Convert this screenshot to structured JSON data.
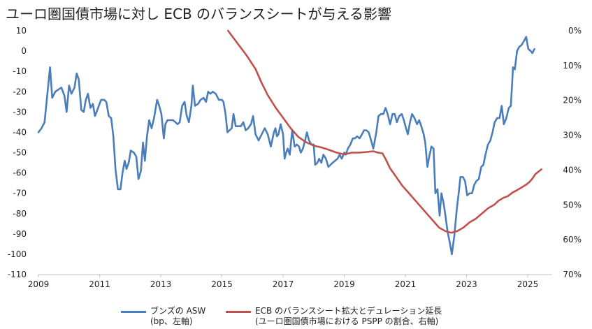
{
  "title": "ユーロ圏国債市場に対し ECB のバランスシートが与える影響",
  "chart_data": {
    "type": "line",
    "title": "ユーロ圏国債市場に対し ECB のバランスシートが与える影響",
    "x_ticks": [
      "2009",
      "2011",
      "2013",
      "2015",
      "2017",
      "2019",
      "2021",
      "2023",
      "2025"
    ],
    "x_range": [
      2009.0,
      2025.8
    ],
    "y_left_ticks": [
      "10",
      "0",
      "-10",
      "-20",
      "-30",
      "-40",
      "-50",
      "-60",
      "-70",
      "-80",
      "-90",
      "-100",
      "-110"
    ],
    "y_left_range": [
      -110,
      10
    ],
    "y_right_ticks": [
      "0%",
      "10%",
      "20%",
      "30%",
      "40%",
      "50%",
      "60%",
      "70%"
    ],
    "y_right_range": [
      0,
      70
    ],
    "y_right_inverted": true,
    "grid": false,
    "legend_position": "bottom",
    "series": [
      {
        "name": "ブンズの ASW",
        "name_line2": "(bp、左軸)",
        "axis": "left",
        "color": "#4a7ebb",
        "points": [
          [
            2009.0,
            -40
          ],
          [
            2009.1,
            -38
          ],
          [
            2009.2,
            -35
          ],
          [
            2009.3,
            -20
          ],
          [
            2009.38,
            -8
          ],
          [
            2009.45,
            -23
          ],
          [
            2009.55,
            -20
          ],
          [
            2009.65,
            -19
          ],
          [
            2009.75,
            -18
          ],
          [
            2009.85,
            -22
          ],
          [
            2009.92,
            -30
          ],
          [
            2010.0,
            -17
          ],
          [
            2010.08,
            -21
          ],
          [
            2010.18,
            -18
          ],
          [
            2010.25,
            -11
          ],
          [
            2010.32,
            -14
          ],
          [
            2010.4,
            -29
          ],
          [
            2010.48,
            -30
          ],
          [
            2010.55,
            -24
          ],
          [
            2010.62,
            -21
          ],
          [
            2010.7,
            -28
          ],
          [
            2010.78,
            -26
          ],
          [
            2010.85,
            -32
          ],
          [
            2010.95,
            -28
          ],
          [
            2011.05,
            -24
          ],
          [
            2011.15,
            -24
          ],
          [
            2011.22,
            -25
          ],
          [
            2011.3,
            -32
          ],
          [
            2011.38,
            -33
          ],
          [
            2011.45,
            -42
          ],
          [
            2011.52,
            -58
          ],
          [
            2011.6,
            -68
          ],
          [
            2011.68,
            -68
          ],
          [
            2011.75,
            -60
          ],
          [
            2011.82,
            -54
          ],
          [
            2011.88,
            -58
          ],
          [
            2011.95,
            -55
          ],
          [
            2012.02,
            -49
          ],
          [
            2012.12,
            -50
          ],
          [
            2012.2,
            -52
          ],
          [
            2012.27,
            -63
          ],
          [
            2012.35,
            -59
          ],
          [
            2012.42,
            -45
          ],
          [
            2012.48,
            -54
          ],
          [
            2012.55,
            -42
          ],
          [
            2012.62,
            -34
          ],
          [
            2012.7,
            -38
          ],
          [
            2012.78,
            -33
          ],
          [
            2012.88,
            -24
          ],
          [
            2012.95,
            -27
          ],
          [
            2013.02,
            -31
          ],
          [
            2013.1,
            -43
          ],
          [
            2013.15,
            -36
          ],
          [
            2013.22,
            -34
          ],
          [
            2013.3,
            -34
          ],
          [
            2013.4,
            -34
          ],
          [
            2013.48,
            -35
          ],
          [
            2013.55,
            -36
          ],
          [
            2013.62,
            -35
          ],
          [
            2013.7,
            -27
          ],
          [
            2013.78,
            -25
          ],
          [
            2013.85,
            -32
          ],
          [
            2013.92,
            -35
          ],
          [
            2014.0,
            -27
          ],
          [
            2014.05,
            -17
          ],
          [
            2014.12,
            -27
          ],
          [
            2014.22,
            -26
          ],
          [
            2014.3,
            -24
          ],
          [
            2014.4,
            -23
          ],
          [
            2014.48,
            -25
          ],
          [
            2014.55,
            -20
          ],
          [
            2014.62,
            -21
          ],
          [
            2014.7,
            -20
          ],
          [
            2014.8,
            -21
          ],
          [
            2014.9,
            -24
          ],
          [
            2015.0,
            -24
          ],
          [
            2015.05,
            -25
          ],
          [
            2015.12,
            -31
          ],
          [
            2015.18,
            -40
          ],
          [
            2015.25,
            -39
          ],
          [
            2015.32,
            -38
          ],
          [
            2015.38,
            -31
          ],
          [
            2015.45,
            -37
          ],
          [
            2015.55,
            -37
          ],
          [
            2015.62,
            -37
          ],
          [
            2015.7,
            -35
          ],
          [
            2015.78,
            -39
          ],
          [
            2015.86,
            -38
          ],
          [
            2015.95,
            -36
          ],
          [
            2016.02,
            -32
          ],
          [
            2016.1,
            -41
          ],
          [
            2016.2,
            -44
          ],
          [
            2016.3,
            -41
          ],
          [
            2016.4,
            -38
          ],
          [
            2016.5,
            -41
          ],
          [
            2016.6,
            -47
          ],
          [
            2016.7,
            -40
          ],
          [
            2016.75,
            -38
          ],
          [
            2016.8,
            -42
          ],
          [
            2016.85,
            -41
          ],
          [
            2016.92,
            -36
          ],
          [
            2017.0,
            -41
          ],
          [
            2017.05,
            -53
          ],
          [
            2017.1,
            -50
          ],
          [
            2017.15,
            -48
          ],
          [
            2017.22,
            -51
          ],
          [
            2017.3,
            -39
          ],
          [
            2017.38,
            -47
          ],
          [
            2017.45,
            -46
          ],
          [
            2017.52,
            -47
          ],
          [
            2017.58,
            -50
          ],
          [
            2017.65,
            -48
          ],
          [
            2017.72,
            -44
          ],
          [
            2017.78,
            -40
          ],
          [
            2017.85,
            -44
          ],
          [
            2017.92,
            -46
          ],
          [
            2018.0,
            -46
          ],
          [
            2018.05,
            -56
          ],
          [
            2018.12,
            -55
          ],
          [
            2018.18,
            -53
          ],
          [
            2018.25,
            -55
          ],
          [
            2018.32,
            -51
          ],
          [
            2018.4,
            -53
          ],
          [
            2018.48,
            -57
          ],
          [
            2018.55,
            -56
          ],
          [
            2018.62,
            -55
          ],
          [
            2018.7,
            -54
          ],
          [
            2018.78,
            -53
          ],
          [
            2018.85,
            -51
          ],
          [
            2018.92,
            -53
          ],
          [
            2019.0,
            -50
          ],
          [
            2019.05,
            -51
          ],
          [
            2019.12,
            -48
          ],
          [
            2019.2,
            -46
          ],
          [
            2019.28,
            -43
          ],
          [
            2019.35,
            -43
          ],
          [
            2019.42,
            -42
          ],
          [
            2019.5,
            -43
          ],
          [
            2019.58,
            -41
          ],
          [
            2019.65,
            -39
          ],
          [
            2019.72,
            -39
          ],
          [
            2019.8,
            -40
          ],
          [
            2019.88,
            -44
          ],
          [
            2019.95,
            -48
          ],
          [
            2020.05,
            -40
          ],
          [
            2020.12,
            -32
          ],
          [
            2020.2,
            -31
          ],
          [
            2020.28,
            -31
          ],
          [
            2020.35,
            -28
          ],
          [
            2020.42,
            -31
          ],
          [
            2020.5,
            -36
          ],
          [
            2020.58,
            -31
          ],
          [
            2020.65,
            -31
          ],
          [
            2020.72,
            -35
          ],
          [
            2020.8,
            -32
          ],
          [
            2020.88,
            -31
          ],
          [
            2020.95,
            -34
          ],
          [
            2021.02,
            -38
          ],
          [
            2021.08,
            -41
          ],
          [
            2021.15,
            -35
          ],
          [
            2021.22,
            -31
          ],
          [
            2021.3,
            -33
          ],
          [
            2021.38,
            -36
          ],
          [
            2021.45,
            -34
          ],
          [
            2021.52,
            -37
          ],
          [
            2021.6,
            -41
          ],
          [
            2021.65,
            -45
          ],
          [
            2021.72,
            -57
          ],
          [
            2021.78,
            -52
          ],
          [
            2021.85,
            -47
          ],
          [
            2021.92,
            -48
          ],
          [
            2021.98,
            -70
          ],
          [
            2022.05,
            -68
          ],
          [
            2022.12,
            -81
          ],
          [
            2022.18,
            -70
          ],
          [
            2022.25,
            -75
          ],
          [
            2022.3,
            -80
          ],
          [
            2022.38,
            -89
          ],
          [
            2022.45,
            -94
          ],
          [
            2022.52,
            -100
          ],
          [
            2022.6,
            -91
          ],
          [
            2022.68,
            -78
          ],
          [
            2022.75,
            -69
          ],
          [
            2022.8,
            -62
          ],
          [
            2022.88,
            -62
          ],
          [
            2022.95,
            -64
          ],
          [
            2023.02,
            -71
          ],
          [
            2023.1,
            -70
          ],
          [
            2023.18,
            -70
          ],
          [
            2023.25,
            -66
          ],
          [
            2023.32,
            -64
          ],
          [
            2023.4,
            -63
          ],
          [
            2023.48,
            -57
          ],
          [
            2023.55,
            -56
          ],
          [
            2023.62,
            -51
          ],
          [
            2023.7,
            -46
          ],
          [
            2023.78,
            -44
          ],
          [
            2023.85,
            -40
          ],
          [
            2023.92,
            -35
          ],
          [
            2024.0,
            -33
          ],
          [
            2024.08,
            -33
          ],
          [
            2024.15,
            -27
          ],
          [
            2024.22,
            -36
          ],
          [
            2024.3,
            -33
          ],
          [
            2024.38,
            -28
          ],
          [
            2024.45,
            -27
          ],
          [
            2024.52,
            -8
          ],
          [
            2024.58,
            -9
          ],
          [
            2024.65,
            0
          ],
          [
            2024.72,
            2
          ],
          [
            2024.8,
            3
          ],
          [
            2024.88,
            5
          ],
          [
            2024.95,
            7
          ],
          [
            2025.02,
            1
          ],
          [
            2025.1,
            0
          ],
          [
            2025.15,
            -1
          ],
          [
            2025.22,
            1
          ]
        ]
      },
      {
        "name": "ECB のバランスシート拡大とデュレーション延長",
        "name_line2": "(ユーロ圏国債市場における PSPP の割合、右軸)",
        "axis": "right",
        "color": "#c0504d",
        "points": [
          [
            2015.2,
            0
          ],
          [
            2015.5,
            3.5
          ],
          [
            2015.8,
            7
          ],
          [
            2016.1,
            11
          ],
          [
            2016.3,
            15
          ],
          [
            2016.5,
            18.5
          ],
          [
            2016.75,
            22
          ],
          [
            2017.0,
            25
          ],
          [
            2017.25,
            28
          ],
          [
            2017.5,
            30.5
          ],
          [
            2017.75,
            32
          ],
          [
            2018.0,
            33
          ],
          [
            2018.25,
            33.5
          ],
          [
            2018.5,
            34.2
          ],
          [
            2018.75,
            35
          ],
          [
            2019.0,
            35.5
          ],
          [
            2019.25,
            35
          ],
          [
            2019.5,
            35
          ],
          [
            2019.75,
            34.8
          ],
          [
            2019.95,
            34.6
          ],
          [
            2020.1,
            35
          ],
          [
            2020.25,
            35.2
          ],
          [
            2020.35,
            36.8
          ],
          [
            2020.5,
            39.5
          ],
          [
            2020.7,
            42
          ],
          [
            2020.9,
            44.5
          ],
          [
            2021.1,
            46.5
          ],
          [
            2021.3,
            48.5
          ],
          [
            2021.5,
            50.5
          ],
          [
            2021.7,
            52.5
          ],
          [
            2021.9,
            54.5
          ],
          [
            2022.1,
            56.5
          ],
          [
            2022.3,
            57.5
          ],
          [
            2022.5,
            58
          ],
          [
            2022.7,
            57.5
          ],
          [
            2022.9,
            56.5
          ],
          [
            2023.1,
            55
          ],
          [
            2023.3,
            54
          ],
          [
            2023.5,
            52.5
          ],
          [
            2023.7,
            51
          ],
          [
            2023.9,
            50
          ],
          [
            2024.05,
            48.8
          ],
          [
            2024.2,
            48
          ],
          [
            2024.35,
            47.5
          ],
          [
            2024.5,
            46.5
          ],
          [
            2024.65,
            45.8
          ],
          [
            2024.8,
            45
          ],
          [
            2024.95,
            44.2
          ],
          [
            2025.05,
            43.5
          ],
          [
            2025.15,
            42.5
          ],
          [
            2025.25,
            41.2
          ],
          [
            2025.35,
            40.5
          ],
          [
            2025.45,
            39.8
          ]
        ]
      }
    ]
  }
}
